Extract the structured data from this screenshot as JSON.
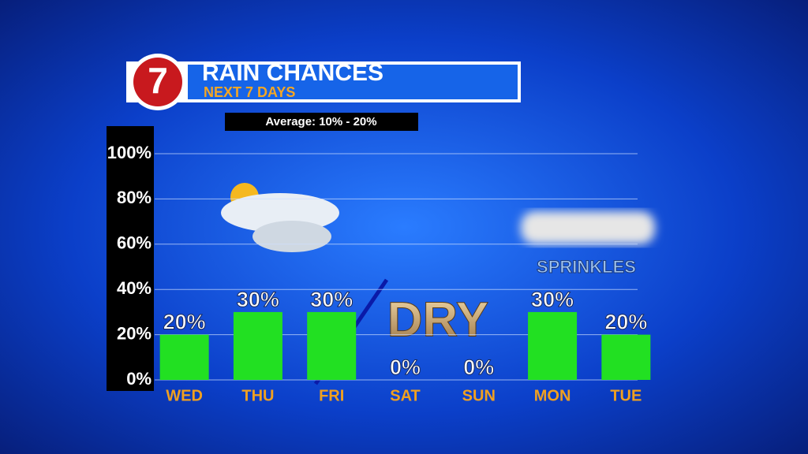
{
  "chart_data": {
    "type": "bar",
    "logo": "7",
    "title": "RAIN CHANCES",
    "subtitle": "NEXT 7 DAYS",
    "annotation": "Average: 10% - 20%",
    "categories": [
      "WED",
      "THU",
      "FRI",
      "SAT",
      "SUN",
      "MON",
      "TUE"
    ],
    "values": [
      20,
      30,
      30,
      0,
      0,
      30,
      20
    ],
    "value_labels": [
      "20%",
      "30%",
      "30%",
      "0%",
      "0%",
      "30%",
      "20%"
    ],
    "color": "#22e022",
    "ylim": [
      0,
      100
    ],
    "yticks": [
      {
        "value": 0,
        "label": "0%"
      },
      {
        "value": 20,
        "label": "20%"
      },
      {
        "value": 40,
        "label": "40%"
      },
      {
        "value": 60,
        "label": "60%"
      },
      {
        "value": 80,
        "label": "80%"
      },
      {
        "value": 100,
        "label": "100%"
      }
    ],
    "grid": true,
    "notes": [
      "DRY",
      "SPRINKLES"
    ]
  }
}
